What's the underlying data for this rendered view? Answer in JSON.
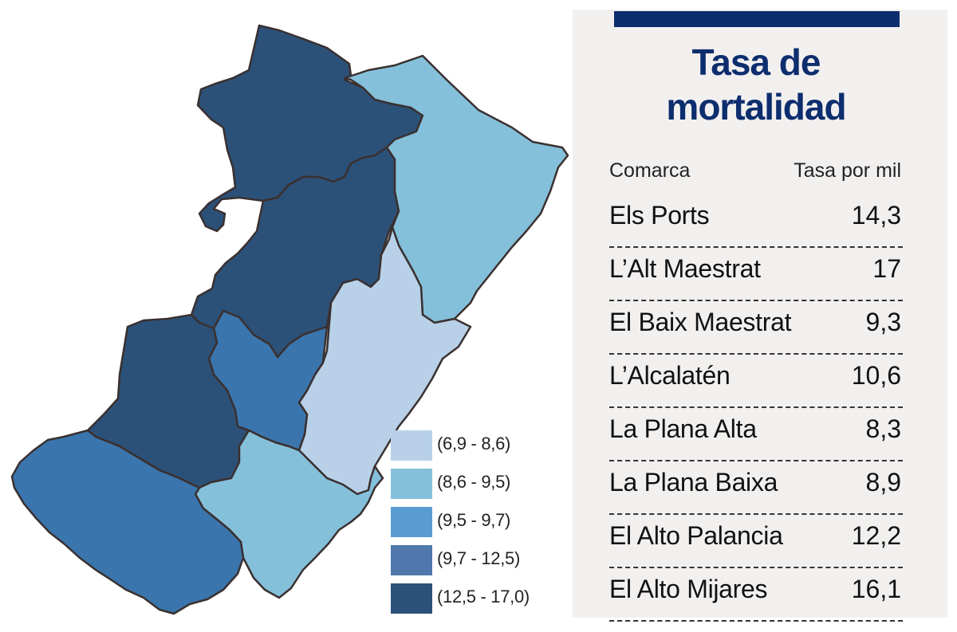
{
  "title": "Tasa de mortalidad",
  "table": {
    "col_left": "Comarca",
    "col_right": "Tasa por mil",
    "rows": [
      {
        "name": "Els Ports",
        "value": "14,3"
      },
      {
        "name": "L’Alt Maestrat",
        "value": "17"
      },
      {
        "name": "El Baix Maestrat",
        "value": "9,3"
      },
      {
        "name": "L’Alcalatén",
        "value": "10,6"
      },
      {
        "name": "La Plana Alta",
        "value": "8,3"
      },
      {
        "name": "La Plana Baixa",
        "value": "8,9"
      },
      {
        "name": "El Alto Palancia",
        "value": "12,2"
      },
      {
        "name": "El Alto Mijares",
        "value": "16,1"
      }
    ]
  },
  "legend": [
    {
      "label": "(6,9 - 8,6)",
      "color": "#b8d1e9"
    },
    {
      "label": "(8,6 - 9,5)",
      "color": "#85c0da"
    },
    {
      "label": "(9,5 - 9,7)",
      "color": "#5a9bd1"
    },
    {
      "label": "(9,7 - 12,5)",
      "color": "#4f78ad"
    },
    {
      "label": "(12,5 - 17,0)",
      "color": "#2c5178"
    }
  ],
  "regions": [
    {
      "id": "els-ports",
      "color": "#2c5178"
    },
    {
      "id": "alt-maestrat",
      "color": "#2c5178"
    },
    {
      "id": "baix-maestrat",
      "color": "#85c0da"
    },
    {
      "id": "plana-alta",
      "color": "#b8d1e9"
    },
    {
      "id": "alcalaten",
      "color": "#3a75ad"
    },
    {
      "id": "alto-mijares",
      "color": "#2c5178"
    },
    {
      "id": "plana-baixa",
      "color": "#85c0da"
    },
    {
      "id": "alto-palancia",
      "color": "#3a75ad"
    }
  ],
  "colors": {
    "title": "#0d2e6e",
    "panel_bg": "#f2f0ef"
  }
}
